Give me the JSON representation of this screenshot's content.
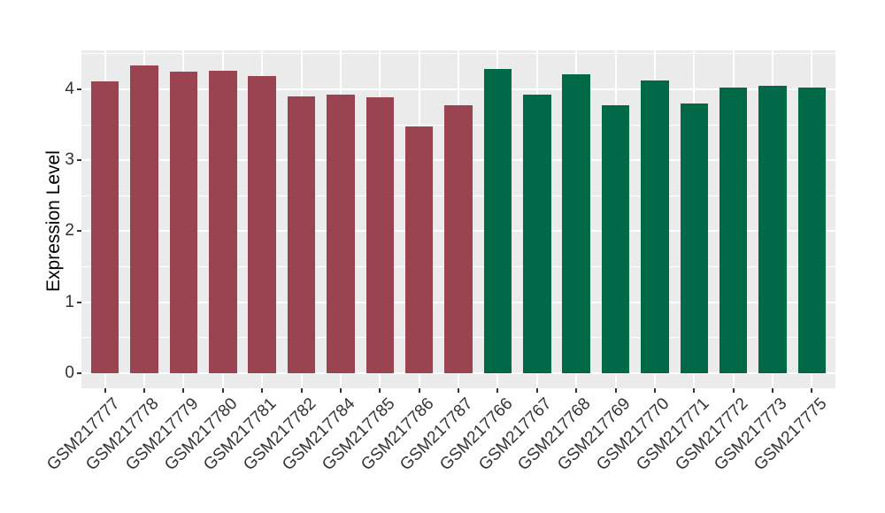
{
  "chart_data": {
    "type": "bar",
    "title": "",
    "xlabel": "",
    "ylabel": "Expression Level",
    "ylim": [
      0,
      4.57
    ],
    "yticks": [
      0,
      1,
      2,
      3,
      4
    ],
    "minor_ticks": [
      0.5,
      1.5,
      2.5,
      3.5,
      4.5
    ],
    "grid": "on",
    "legend": "none",
    "panel_bg": "#EBEBEB",
    "grid_color": "#FFFFFF",
    "tick_color": "#333333",
    "categories": [
      "GSM217777",
      "GSM217778",
      "GSM217779",
      "GSM217780",
      "GSM217781",
      "GSM217782",
      "GSM217784",
      "GSM217785",
      "GSM217786",
      "GSM217787",
      "GSM217766",
      "GSM217767",
      "GSM217768",
      "GSM217769",
      "GSM217770",
      "GSM217771",
      "GSM217772",
      "GSM217773",
      "GSM217775"
    ],
    "values": [
      4.11,
      4.34,
      4.25,
      4.26,
      4.19,
      3.9,
      3.92,
      3.89,
      3.48,
      3.77,
      4.28,
      3.93,
      4.21,
      3.78,
      4.12,
      3.8,
      4.02,
      4.05,
      4.03
    ],
    "bar_groups": [
      "maroon",
      "maroon",
      "maroon",
      "maroon",
      "maroon",
      "maroon",
      "maroon",
      "maroon",
      "maroon",
      "maroon",
      "green",
      "green",
      "green",
      "green",
      "green",
      "green",
      "green",
      "green",
      "green"
    ],
    "group_colors": {
      "maroon": "#9A4351",
      "green": "#016948"
    }
  }
}
